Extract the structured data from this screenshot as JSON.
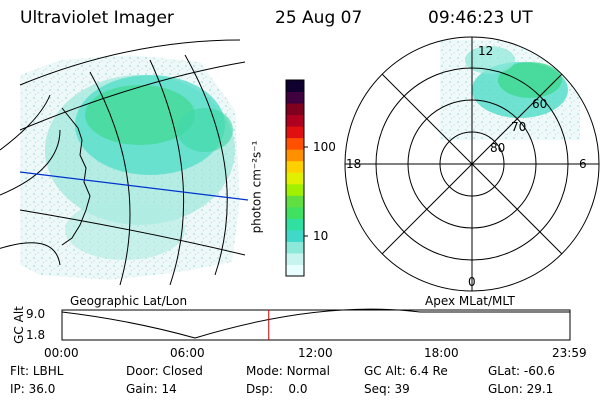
{
  "header": {
    "title": "Ultraviolet Imager",
    "date": "25 Aug 07",
    "time": "09:46:23 UT"
  },
  "left_panel": {
    "caption": "Geographic Lat/Lon"
  },
  "right_panel": {
    "caption": "Apex MLat/MLT",
    "mlt_labels": {
      "top": "12",
      "bottom": "0",
      "left": "18",
      "right": "6"
    },
    "lat_labels": [
      "60",
      "70",
      "80"
    ]
  },
  "colorbar": {
    "unit_label": "photon cm⁻²s⁻¹",
    "tick_labels": [
      "100",
      "10"
    ],
    "colors": [
      "#e8ffff",
      "#c8f4f0",
      "#8ce8d8",
      "#40d8c8",
      "#30e0a0",
      "#40e060",
      "#60e040",
      "#a0f000",
      "#e0f000",
      "#ffd000",
      "#ff9000",
      "#ff5000",
      "#e01010",
      "#b00020",
      "#800020",
      "#400040",
      "#100030"
    ]
  },
  "altitude_plot": {
    "ylabel": "GC Alt",
    "y_ticks": [
      "9.0",
      "1.8"
    ],
    "x_ticks": [
      "00:00",
      "06:00",
      "12:00",
      "18:00",
      "23:59"
    ],
    "current_time_fraction": 0.407
  },
  "info": {
    "flt_label": "Flt:",
    "flt_value": "LBHL",
    "door_label": "Door:",
    "door_value": "Closed",
    "mode_label": "Mode:",
    "mode_value": "Normal",
    "gcalt_label": "GC Alt:",
    "gcalt_value": "6.4 Re",
    "glat_label": "GLat:",
    "glat_value": "-60.6",
    "ip_label": "IP:",
    "ip_value": "36.0",
    "gain_label": "Gain:",
    "gain_value": "14",
    "dsp_label": "Dsp:",
    "dsp_value": "0.0",
    "seq_label": "Seq:",
    "seq_value": "39",
    "glon_label": "GLon:",
    "glon_value": "29.1"
  },
  "colors": {
    "meridian_line": "#0033cc",
    "time_marker": "#cc0000"
  }
}
